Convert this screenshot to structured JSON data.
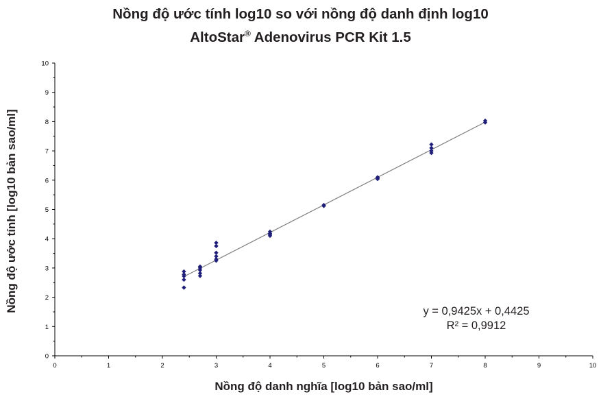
{
  "title_line1": "Nồng độ ước tính log10 so với nồng độ danh định log10",
  "title_line2_main": "AltoStar",
  "title_line2_sup": "®",
  "title_line2_rest": " Adenovirus PCR Kit 1.5",
  "equation": "y = 0,9425x + 0,4425",
  "r_squared": "R² = 0,9912",
  "colors": {
    "marker": "#1f1f7a",
    "trendline": "#7f7f7f",
    "axis": "#000000"
  },
  "chart_data": {
    "type": "scatter",
    "xlabel": "Nồng độ danh nghĩa [log10 bản sao/ml]",
    "ylabel": "Nồng độ ước tính [log10 bản sao/ml]",
    "xlim": [
      0,
      10
    ],
    "ylim": [
      0,
      10
    ],
    "x_ticks": [
      "0",
      "1",
      "2",
      "3",
      "4",
      "5",
      "6",
      "7",
      "8",
      "9",
      "10"
    ],
    "y_ticks": [
      "0",
      "1",
      "2",
      "3",
      "4",
      "5",
      "6",
      "7",
      "8",
      "9",
      "10"
    ],
    "grid": false,
    "trendline": {
      "slope": 0.9425,
      "intercept": 0.4425
    },
    "points": [
      [
        2.4,
        2.88
      ],
      [
        2.4,
        2.78
      ],
      [
        2.4,
        2.72
      ],
      [
        2.4,
        2.6
      ],
      [
        2.4,
        2.33
      ],
      [
        2.7,
        3.05
      ],
      [
        2.7,
        3.0
      ],
      [
        2.7,
        2.93
      ],
      [
        2.7,
        2.82
      ],
      [
        2.7,
        2.73
      ],
      [
        3.0,
        3.86
      ],
      [
        3.0,
        3.75
      ],
      [
        3.0,
        3.52
      ],
      [
        3.0,
        3.4
      ],
      [
        3.0,
        3.3
      ],
      [
        3.0,
        3.25
      ],
      [
        4.0,
        4.24
      ],
      [
        4.0,
        4.18
      ],
      [
        4.0,
        4.14
      ],
      [
        4.0,
        4.1
      ],
      [
        5.0,
        5.15
      ],
      [
        5.0,
        5.12
      ],
      [
        6.0,
        6.1
      ],
      [
        6.0,
        6.07
      ],
      [
        6.0,
        6.04
      ],
      [
        7.0,
        7.22
      ],
      [
        7.0,
        7.1
      ],
      [
        7.0,
        7.0
      ],
      [
        7.0,
        6.93
      ],
      [
        8.0,
        8.03
      ],
      [
        8.0,
        7.97
      ]
    ]
  }
}
